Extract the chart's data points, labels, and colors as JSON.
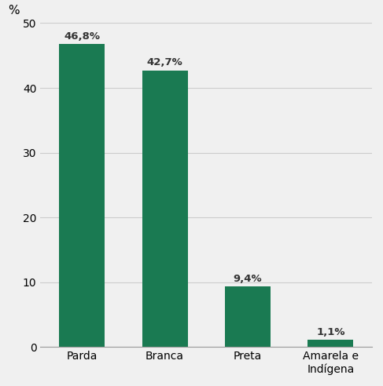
{
  "categories": [
    "Parda",
    "Branca",
    "Preta",
    "Amarela e\nIndígena"
  ],
  "values": [
    46.8,
    42.7,
    9.4,
    1.1
  ],
  "labels": [
    "46,8%",
    "42,7%",
    "9,4%",
    "1,1%"
  ],
  "bar_color": "#1a7a52",
  "background_color": "#f0f0f0",
  "ylabel": "%",
  "ylim": [
    0,
    50
  ],
  "yticks": [
    0,
    10,
    20,
    30,
    40,
    50
  ],
  "label_fontsize": 9.5,
  "tick_fontsize": 10,
  "ylabel_fontsize": 11,
  "bar_width": 0.55
}
